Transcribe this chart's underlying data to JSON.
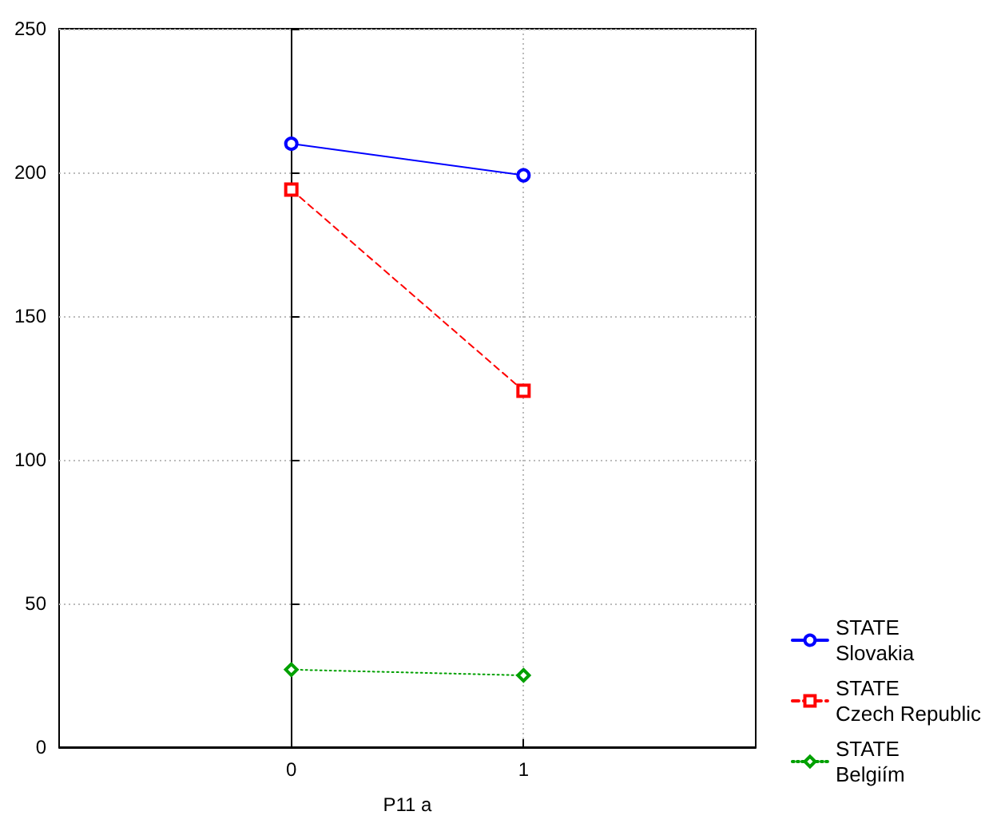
{
  "chart_data": {
    "type": "line",
    "xlabel": "P11 a",
    "x": [
      0,
      1
    ],
    "xlim": [
      -1,
      2
    ],
    "xticks": [
      0,
      1
    ],
    "ylim": [
      0,
      250
    ],
    "yticks": [
      0,
      50,
      100,
      150,
      200,
      250
    ],
    "grid": true,
    "legend": "bottom right",
    "series": [
      {
        "name": "STATE\nSlovakia",
        "color": "#0000ff",
        "values": [
          210,
          199
        ],
        "marker": "circle",
        "line_style": "solid"
      },
      {
        "name": "STATE\nCzech Republic",
        "color": "#ff0000",
        "values": [
          194,
          124
        ],
        "marker": "square",
        "line_style": "dashed"
      },
      {
        "name": "STATE\nBelgiím",
        "color": "#00a000",
        "values": [
          27,
          25
        ],
        "marker": "diamond",
        "line_style": "dotted"
      }
    ]
  }
}
